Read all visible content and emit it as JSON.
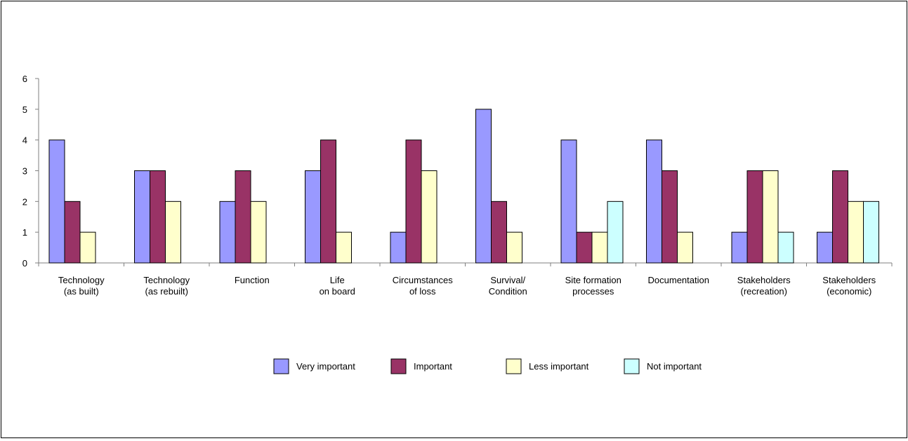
{
  "chart_data": {
    "type": "bar",
    "title": "",
    "xlabel": "",
    "ylabel": "",
    "ylim": [
      0,
      6
    ],
    "yticks": [
      0,
      1,
      2,
      3,
      4,
      5,
      6
    ],
    "grid": false,
    "legend_position": "bottom",
    "categories": [
      [
        "Technology",
        "(as built)"
      ],
      [
        "Technology",
        "(as rebuilt)"
      ],
      [
        "Function"
      ],
      [
        "Life",
        "on board"
      ],
      [
        "Circumstances",
        "of loss"
      ],
      [
        "Survival/",
        "Condition"
      ],
      [
        "Site formation",
        "processes"
      ],
      [
        "Documentation"
      ],
      [
        "Stakeholders",
        "(recreation)"
      ],
      [
        "Stakeholders",
        "(economic)"
      ]
    ],
    "series": [
      {
        "name": "Very important",
        "color": "#9999ff",
        "values": [
          4,
          3,
          2,
          3,
          1,
          5,
          4,
          4,
          1,
          1
        ]
      },
      {
        "name": "Important",
        "color": "#993366",
        "values": [
          2,
          3,
          3,
          4,
          4,
          2,
          1,
          3,
          3,
          3
        ]
      },
      {
        "name": "Less important",
        "color": "#ffffcc",
        "values": [
          1,
          2,
          2,
          1,
          3,
          1,
          1,
          1,
          3,
          2
        ]
      },
      {
        "name": "Not important",
        "color": "#ccffff",
        "values": [
          0,
          0,
          0,
          0,
          0,
          0,
          2,
          0,
          1,
          2
        ]
      }
    ]
  }
}
